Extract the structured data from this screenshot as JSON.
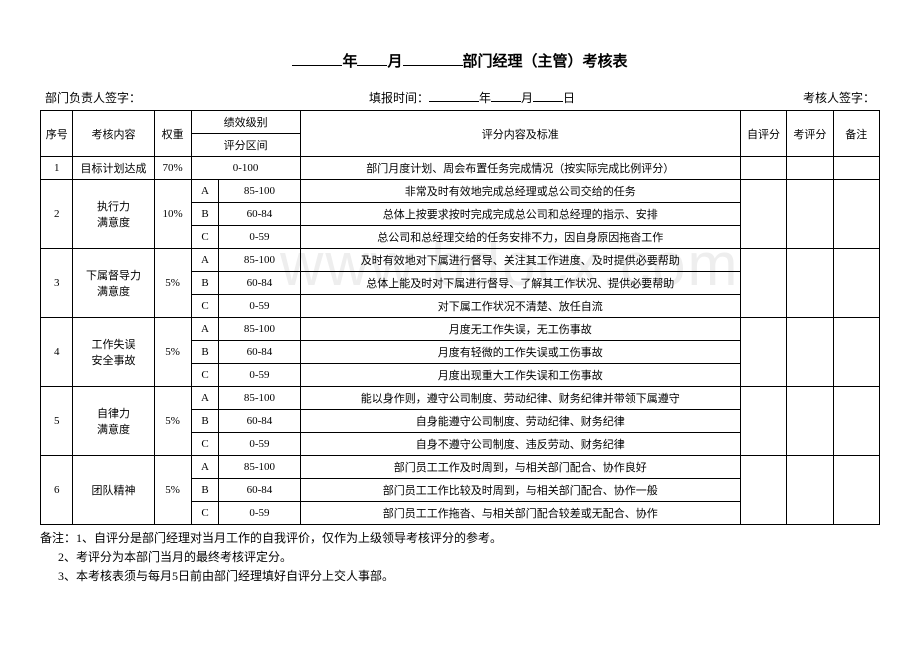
{
  "title": {
    "year_label": "年",
    "month_label": "月",
    "main": "部门经理（主管）考核表"
  },
  "meta": {
    "left": "部门负责人签字：",
    "center_prefix": "填报时间：",
    "year": "年",
    "month": "月",
    "day": "日",
    "right": "考核人签字："
  },
  "headers": {
    "seq": "序号",
    "content": "考核内容",
    "weight": "权重",
    "grade_group": "绩效级别",
    "range": "评分区间",
    "criteria": "评分内容及标准",
    "self": "自评分",
    "eval": "考评分",
    "remark": "备注"
  },
  "rows": [
    {
      "seq": "1",
      "content": "目标计划达成",
      "weight": "70%",
      "sub": [
        {
          "grade": "",
          "range": "0-100",
          "criteria": "部门月度计划、周会布置任务完成情况（按实际完成比例评分）"
        }
      ]
    },
    {
      "seq": "2",
      "content": "执行力\n满意度",
      "weight": "10%",
      "sub": [
        {
          "grade": "A",
          "range": "85-100",
          "criteria": "非常及时有效地完成总经理或总公司交给的任务"
        },
        {
          "grade": "B",
          "range": "60-84",
          "criteria": "总体上按要求按时完成完成总公司和总经理的指示、安排"
        },
        {
          "grade": "C",
          "range": "0-59",
          "criteria": "总公司和总经理交给的任务安排不力，因自身原因拖沓工作"
        }
      ]
    },
    {
      "seq": "3",
      "content": "下属督导力\n满意度",
      "weight": "5%",
      "sub": [
        {
          "grade": "A",
          "range": "85-100",
          "criteria": "及时有效地对下属进行督导、关注其工作进度、及时提供必要帮助"
        },
        {
          "grade": "B",
          "range": "60-84",
          "criteria": "总体上能及时对下属进行督导、了解其工作状况、提供必要帮助"
        },
        {
          "grade": "C",
          "range": "0-59",
          "criteria": "对下属工作状况不清楚、放任自流"
        }
      ]
    },
    {
      "seq": "4",
      "content": "工作失误\n安全事故",
      "weight": "5%",
      "sub": [
        {
          "grade": "A",
          "range": "85-100",
          "criteria": "月度无工作失误，无工伤事故"
        },
        {
          "grade": "B",
          "range": "60-84",
          "criteria": "月度有轻微的工作失误或工伤事故"
        },
        {
          "grade": "C",
          "range": "0-59",
          "criteria": "月度出现重大工作失误和工伤事故"
        }
      ]
    },
    {
      "seq": "5",
      "content": "自律力\n满意度",
      "weight": "5%",
      "sub": [
        {
          "grade": "A",
          "range": "85-100",
          "criteria": "能以身作则，遵守公司制度、劳动纪律、财务纪律并带领下属遵守"
        },
        {
          "grade": "B",
          "range": "60-84",
          "criteria": "自身能遵守公司制度、劳动纪律、财务纪律"
        },
        {
          "grade": "C",
          "range": "0-59",
          "criteria": "自身不遵守公司制度、违反劳动、财务纪律"
        }
      ]
    },
    {
      "seq": "6",
      "content": "团队精神",
      "weight": "5%",
      "sub": [
        {
          "grade": "A",
          "range": "85-100",
          "criteria": "部门员工工作及时周到，与相关部门配合、协作良好"
        },
        {
          "grade": "B",
          "range": "60-84",
          "criteria": "部门员工工作比较及时周到，与相关部门配合、协作一般"
        },
        {
          "grade": "C",
          "range": "0-59",
          "criteria": "部门员工工作拖沓、与相关部门配合较差或无配合、协作"
        }
      ]
    }
  ],
  "notes": {
    "prefix": "备注：",
    "line1": "1、自评分是部门经理对当月工作的自我评价，仅作为上级领导考核评分的参考。",
    "line2": "2、考评分为本部门当月的最终考核评定分。",
    "line3": "3、本考核表须与每月5日前由部门经理填好自评分上交人事部。"
  },
  "watermark": "www.bdocx.com"
}
